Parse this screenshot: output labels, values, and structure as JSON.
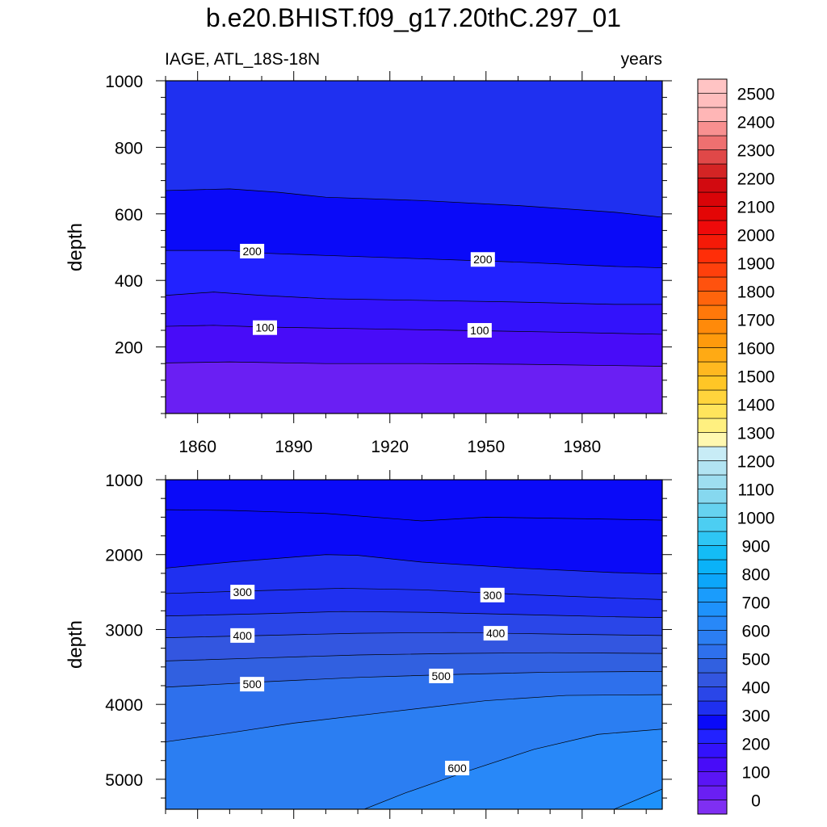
{
  "figure": {
    "title": "b.e20.BHIST.f09_g17.20thC.297_01",
    "left_label": "IAGE, ATL_18S-18N",
    "right_label": "years"
  },
  "chart_data": [
    {
      "type": "contour",
      "name": "upper",
      "title": "b.e20.BHIST.f09_g17.20thC.297_01",
      "xlabel": "",
      "ylabel": "depth",
      "xlim": [
        1850,
        2005
      ],
      "ylim": [
        1000,
        0
      ],
      "xticks": [
        1860,
        1890,
        1920,
        1950,
        1980
      ],
      "yticks": [
        200,
        400,
        600,
        800,
        1000
      ],
      "contour_lines": [
        {
          "level": 50,
          "points": [
            [
              1850,
              152
            ],
            [
              1870,
              155
            ],
            [
              1900,
              150
            ],
            [
              1930,
              150
            ],
            [
              1960,
              148
            ],
            [
              2005,
              142
            ]
          ]
        },
        {
          "level": 100,
          "points": [
            [
              1850,
              262
            ],
            [
              1865,
              265
            ],
            [
              1880,
              260
            ],
            [
              1910,
              255
            ],
            [
              1940,
              250
            ],
            [
              1970,
              245
            ],
            [
              2005,
              238
            ]
          ]
        },
        {
          "level": 150,
          "points": [
            [
              1850,
              355
            ],
            [
              1865,
              365
            ],
            [
              1880,
              355
            ],
            [
              1900,
              345
            ],
            [
              1930,
              340
            ],
            [
              1960,
              335
            ],
            [
              1990,
              328
            ],
            [
              2005,
              328
            ]
          ]
        },
        {
          "level": 200,
          "points": [
            [
              1850,
              490
            ],
            [
              1870,
              490
            ],
            [
              1880,
              482
            ],
            [
              1900,
              475
            ],
            [
              1930,
              465
            ],
            [
              1960,
              455
            ],
            [
              1990,
              442
            ],
            [
              2005,
              438
            ]
          ]
        },
        {
          "level": 250,
          "points": [
            [
              1850,
              670
            ],
            [
              1870,
              675
            ],
            [
              1885,
              665
            ],
            [
              1900,
              650
            ],
            [
              1930,
              640
            ],
            [
              1960,
              625
            ],
            [
              1990,
              605
            ],
            [
              2005,
              590
            ]
          ]
        }
      ],
      "labels": [
        {
          "text": "100",
          "x": 1881,
          "y": 258
        },
        {
          "text": "100",
          "x": 1948,
          "y": 250
        },
        {
          "text": "200",
          "x": 1877,
          "y": 488
        },
        {
          "text": "200",
          "x": 1949,
          "y": 463
        }
      ]
    },
    {
      "type": "contour",
      "name": "lower",
      "xlabel": "",
      "ylabel": "depth",
      "xlim": [
        1850,
        2005
      ],
      "ylim": [
        1000,
        5400
      ],
      "yticks": [
        1000,
        2000,
        3000,
        4000,
        5000
      ],
      "contour_lines": [
        {
          "level": 250,
          "points": [
            [
              1850,
              1400
            ],
            [
              1870,
              1410
            ],
            [
              1900,
              1450
            ],
            [
              1930,
              1550
            ],
            [
              1950,
              1500
            ],
            [
              1980,
              1520
            ],
            [
              2005,
              1540
            ]
          ]
        },
        {
          "level": 280,
          "points": [
            [
              1850,
              2180
            ],
            [
              1870,
              2100
            ],
            [
              1900,
              2000
            ],
            [
              1910,
              2010
            ],
            [
              1930,
              2100
            ],
            [
              1960,
              2180
            ],
            [
              1990,
              2240
            ],
            [
              2005,
              2260
            ]
          ]
        },
        {
          "level": 300,
          "points": [
            [
              1850,
              2520
            ],
            [
              1880,
              2480
            ],
            [
              1905,
              2450
            ],
            [
              1930,
              2470
            ],
            [
              1960,
              2530
            ],
            [
              1990,
              2580
            ],
            [
              2005,
              2600
            ]
          ]
        },
        {
          "level": 350,
          "points": [
            [
              1850,
              2820
            ],
            [
              1880,
              2790
            ],
            [
              1905,
              2760
            ],
            [
              1930,
              2770
            ],
            [
              1960,
              2800
            ],
            [
              1990,
              2830
            ],
            [
              2005,
              2840
            ]
          ]
        },
        {
          "level": 400,
          "points": [
            [
              1850,
              3110
            ],
            [
              1880,
              3080
            ],
            [
              1910,
              3050
            ],
            [
              1940,
              3040
            ],
            [
              1970,
              3060
            ],
            [
              2005,
              3080
            ]
          ]
        },
        {
          "level": 450,
          "points": [
            [
              1850,
              3420
            ],
            [
              1880,
              3380
            ],
            [
              1910,
              3340
            ],
            [
              1940,
              3320
            ],
            [
              1970,
              3310
            ],
            [
              2005,
              3320
            ]
          ]
        },
        {
          "level": 500,
          "points": [
            [
              1850,
              3770
            ],
            [
              1880,
              3700
            ],
            [
              1910,
              3640
            ],
            [
              1940,
              3600
            ],
            [
              1970,
              3570
            ],
            [
              2005,
              3560
            ]
          ]
        },
        {
          "level": 550,
          "points": [
            [
              1850,
              4500
            ],
            [
              1870,
              4380
            ],
            [
              1890,
              4250
            ],
            [
              1920,
              4100
            ],
            [
              1950,
              3950
            ],
            [
              1975,
              3880
            ],
            [
              2005,
              3870
            ]
          ]
        },
        {
          "level": 600,
          "points": [
            [
              1912,
              5400
            ],
            [
              1925,
              5180
            ],
            [
              1945,
              4880
            ],
            [
              1965,
              4600
            ],
            [
              1985,
              4400
            ],
            [
              2005,
              4330
            ]
          ]
        },
        {
          "level": 650,
          "points": [
            [
              1990,
              5400
            ],
            [
              2005,
              5130
            ]
          ]
        }
      ],
      "labels": [
        {
          "text": "300",
          "x": 1874,
          "y": 2500
        },
        {
          "text": "300",
          "x": 1952,
          "y": 2540
        },
        {
          "text": "400",
          "x": 1874,
          "y": 3080
        },
        {
          "text": "400",
          "x": 1953,
          "y": 3050
        },
        {
          "text": "500",
          "x": 1877,
          "y": 3730
        },
        {
          "text": "500",
          "x": 1936,
          "y": 3620
        },
        {
          "text": "600",
          "x": 1941,
          "y": 4850
        }
      ]
    },
    {
      "type": "colorbar",
      "name": "colorbar",
      "levels": [
        0,
        100,
        200,
        300,
        400,
        500,
        600,
        700,
        800,
        900,
        1000,
        1100,
        1200,
        1300,
        1400,
        1500,
        1600,
        1700,
        1800,
        1900,
        2000,
        2100,
        2200,
        2300,
        2400,
        2500
      ],
      "step": 50,
      "min": -50,
      "max": 2550,
      "colors": [
        "#7f2ff2",
        "#6a1ff3",
        "#5a15f5",
        "#480cf8",
        "#3312fb",
        "#2222ff",
        "#0a0af8",
        "#1f30f0",
        "#2a46e8",
        "#3356e0",
        "#3160e0",
        "#2e70ec",
        "#2b7ef2",
        "#2888f8",
        "#1e92fb",
        "#1a9cfc",
        "#0ca6fa",
        "#0ab2f8",
        "#14bcf6",
        "#2ec6f4",
        "#4ccef2",
        "#66d2f0",
        "#86d8ef",
        "#9edef0",
        "#b2e4f2",
        "#c8ecf6",
        "#fff8b0",
        "#fff080",
        "#ffe45c",
        "#ffd43c",
        "#ffc626",
        "#ffb820",
        "#ffaa14",
        "#ff9a0c",
        "#ff8a0a",
        "#ff780a",
        "#ff640c",
        "#ff520e",
        "#ff400c",
        "#ff2e08",
        "#f51a08",
        "#ef0a0a",
        "#e30606",
        "#d90408",
        "#d20a10",
        "#d42424",
        "#e04848",
        "#ee7070",
        "#f89090",
        "#ffb6b6",
        "#ffbdbd",
        "#ffc4c4"
      ]
    }
  ]
}
